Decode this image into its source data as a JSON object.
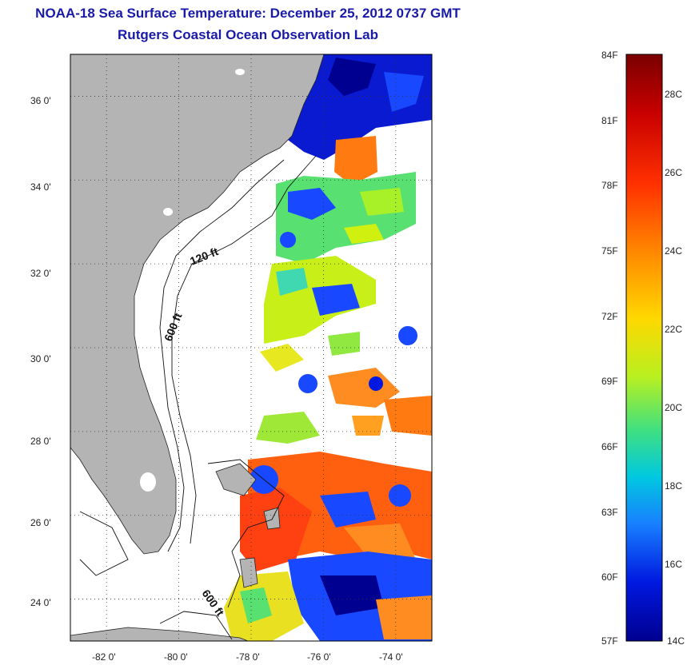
{
  "header": {
    "title": "NOAA-18 Sea Surface Temperature:  December 25, 2012 0737 GMT",
    "subtitle": "Rutgers Coastal Ocean Observation Lab"
  },
  "map": {
    "lon_range": [
      -83,
      -73
    ],
    "lat_range": [
      23,
      37
    ],
    "lon_ticks": [
      "-82 0'",
      "-80 0'",
      "-78 0'",
      "-76 0'",
      "-74 0'"
    ],
    "lat_ticks": [
      "36 0'",
      "34 0'",
      "32 0'",
      "30 0'",
      "28 0'",
      "26 0'",
      "24 0'"
    ],
    "grid": "dotted",
    "land_color": "#b4b4b4",
    "contour_labels": [
      "120 ft",
      "600 ft",
      "600 ft"
    ]
  },
  "colorbar": {
    "fahrenheit_labels": [
      "84F",
      "81F",
      "78F",
      "75F",
      "72F",
      "69F",
      "66F",
      "63F",
      "60F",
      "57F"
    ],
    "celsius_labels": [
      "28C",
      "26C",
      "24C",
      "22C",
      "20C",
      "18C",
      "16C",
      "14C"
    ],
    "colors": [
      "#7a0000",
      "#c80000",
      "#ff3000",
      "#ff8a00",
      "#ffd800",
      "#b8f020",
      "#40e080",
      "#00c8e0",
      "#1880ff",
      "#0018e0",
      "#000090"
    ]
  }
}
